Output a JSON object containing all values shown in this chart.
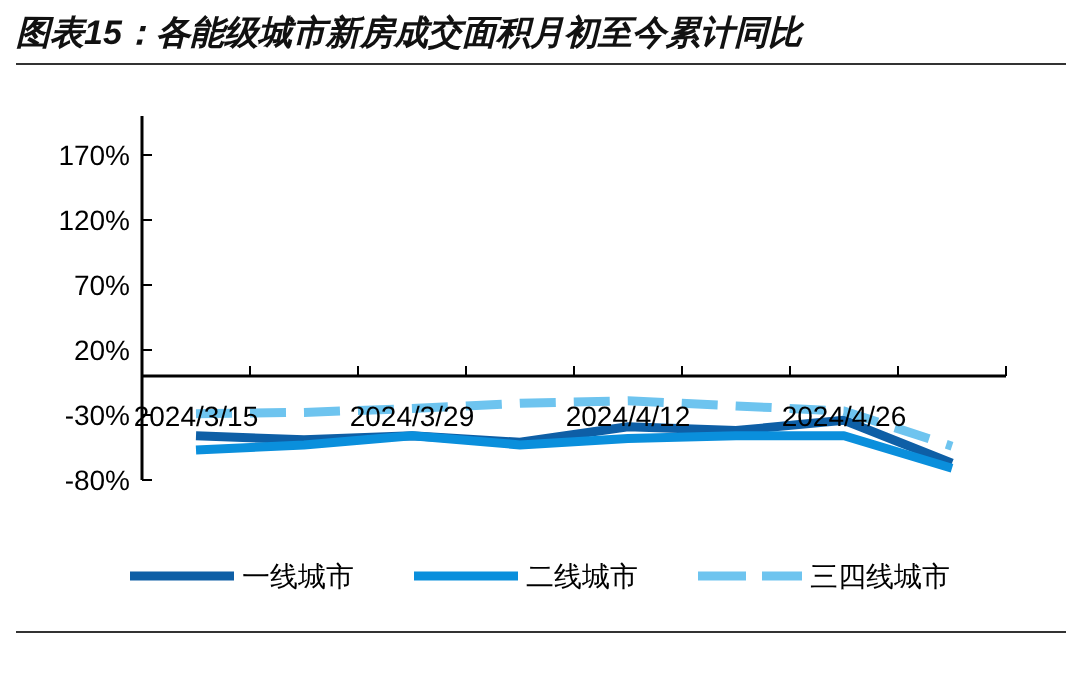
{
  "chart_data": {
    "type": "line",
    "title": "图表15：各能级城市新房成交面积月初至今累计同比",
    "categories": [
      "2024/3/15",
      null,
      "2024/3/29",
      null,
      "2024/4/12",
      null,
      "2024/4/26",
      null
    ],
    "series": [
      {
        "name": "一线城市",
        "color": "#0e5fa6",
        "values": [
          -46,
          -49,
          -46,
          -51,
          -39,
          -42,
          -34,
          -67
        ]
      },
      {
        "name": "二线城市",
        "color": "#0a8fdc",
        "values": [
          -57,
          -53,
          -46,
          -53,
          -48,
          -46,
          -46,
          -71
        ]
      },
      {
        "name": "三四线城市",
        "color": "#6ec4ef",
        "line_style": "dashed",
        "values": [
          -29,
          -28,
          -25,
          -21,
          -19,
          -23,
          -27,
          -54
        ]
      }
    ],
    "ylim": [
      -80,
      200
    ],
    "yticks": [
      {
        "value": -80,
        "label": "-80%"
      },
      {
        "value": -30,
        "label": "-30%"
      },
      {
        "value": 20,
        "label": "20%"
      },
      {
        "value": 70,
        "label": "70%"
      },
      {
        "value": 120,
        "label": "120%"
      },
      {
        "value": 170,
        "label": "170%"
      }
    ],
    "grid": false,
    "legend": "bottom"
  }
}
